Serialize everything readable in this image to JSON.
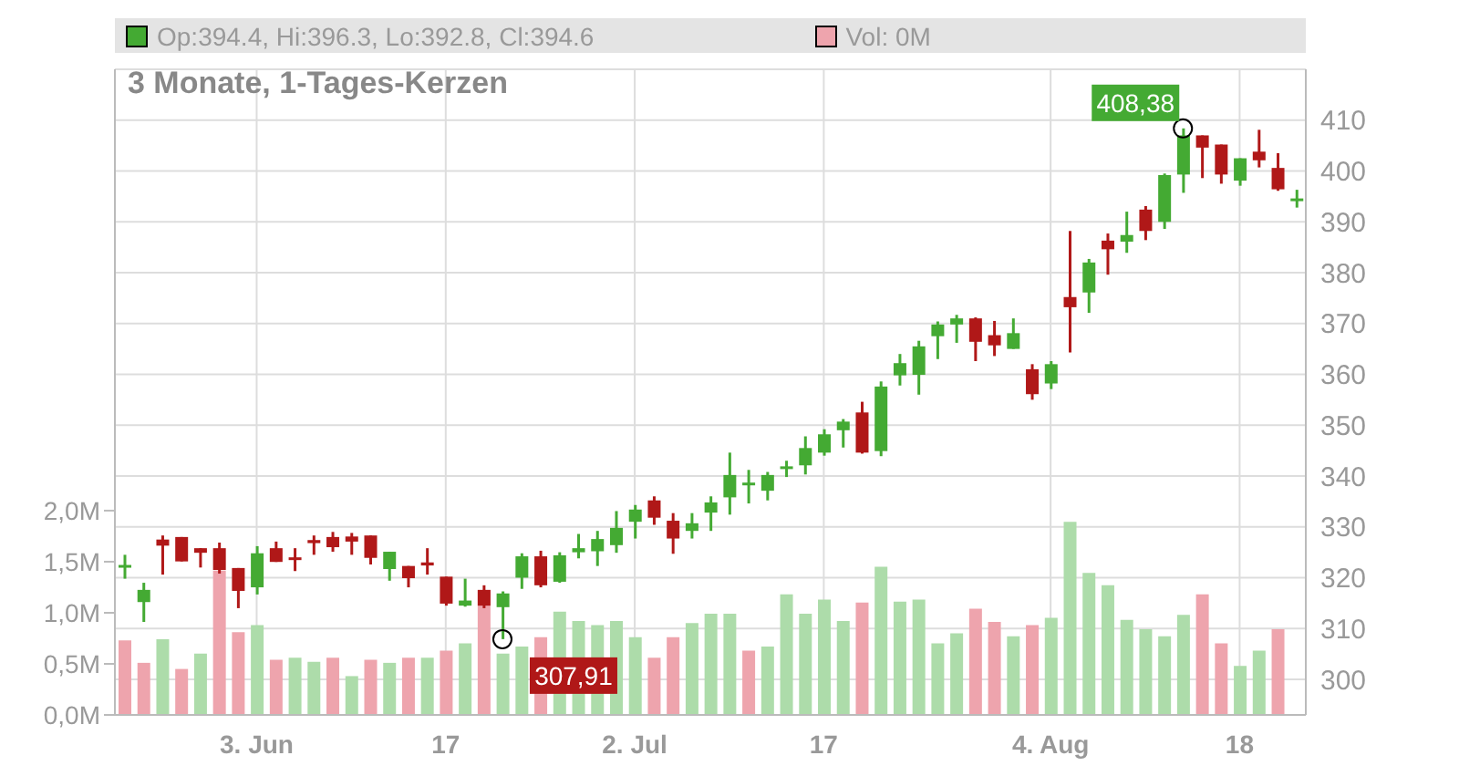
{
  "chart_data": {
    "type": "candlestick",
    "title": "3 Monate, 1-Tages-Kerzen",
    "categories": [
      null,
      null,
      null,
      null,
      null,
      null,
      null,
      "3. Jun",
      null,
      null,
      null,
      null,
      null,
      null,
      null,
      null,
      null,
      "17",
      null,
      null,
      null,
      null,
      null,
      null,
      null,
      null,
      null,
      "2. Jul",
      null,
      null,
      null,
      null,
      null,
      null,
      null,
      null,
      null,
      "17",
      null,
      null,
      null,
      null,
      null,
      null,
      null,
      null,
      null,
      null,
      null,
      "4. Aug",
      null,
      null,
      null,
      null,
      null,
      null,
      null,
      null,
      null,
      "18",
      null,
      null,
      null
    ],
    "series": [
      {
        "name": "Op:394.4, Hi:396.3, Lo:392.8, Cl:394.6",
        "color": "#44aa33",
        "colors": [
          "#44aa33",
          "#44aa33",
          "#b01818",
          "#b01818",
          "#b01818",
          "#b01818",
          "#b01818",
          "#44aa33",
          "#b01818",
          "#b01818",
          "#b01818",
          "#b01818",
          "#b01818",
          "#b01818",
          "#44aa33",
          "#b01818",
          "#b01818",
          "#b01818",
          "#44aa33",
          "#b01818",
          "#44aa33",
          "#44aa33",
          "#b01818",
          "#44aa33",
          "#44aa33",
          "#44aa33",
          "#44aa33",
          "#44aa33",
          "#b01818",
          "#b01818",
          "#44aa33",
          "#44aa33",
          "#44aa33",
          "#44aa33",
          "#44aa33",
          "#44aa33",
          "#44aa33",
          "#44aa33",
          "#44aa33",
          "#b01818",
          "#44aa33",
          "#44aa33",
          "#44aa33",
          "#44aa33",
          "#44aa33",
          "#b01818",
          "#b01818",
          "#44aa33",
          "#b01818",
          "#44aa33",
          "#b01818",
          "#44aa33",
          "#b01818",
          "#44aa33",
          "#b01818",
          "#44aa33",
          "#44aa33",
          "#b01818",
          "#b01818",
          "#44aa33",
          "#b01818",
          "#b01818",
          "#44aa33"
        ],
        "ohlc": [
          [
            322.0,
            324.5,
            319.8,
            322.5
          ],
          [
            315.2,
            319.0,
            311.3,
            317.6
          ],
          [
            327.5,
            328.3,
            320.6,
            326.3
          ],
          [
            328.0,
            328.0,
            323.2,
            323.2
          ],
          [
            325.8,
            325.8,
            322.0,
            324.9
          ],
          [
            325.8,
            326.9,
            320.8,
            321.5
          ],
          [
            321.9,
            321.9,
            314.0,
            317.4
          ],
          [
            318.1,
            326.2,
            316.7,
            324.8
          ],
          [
            325.8,
            327.1,
            323.1,
            323.1
          ],
          [
            324.0,
            325.8,
            321.3,
            323.6
          ],
          [
            327.4,
            328.3,
            324.5,
            326.8
          ],
          [
            328.0,
            329.0,
            325.1,
            326.0
          ],
          [
            328.1,
            328.8,
            324.5,
            327.1
          ],
          [
            328.3,
            328.3,
            322.6,
            323.9
          ],
          [
            321.7,
            325.1,
            319.4,
            325.1
          ],
          [
            322.3,
            322.3,
            318.1,
            319.9
          ],
          [
            323.0,
            325.8,
            320.6,
            322.4
          ],
          [
            320.2,
            320.2,
            314.5,
            314.9
          ],
          [
            314.5,
            319.8,
            314.3,
            315.5
          ],
          [
            317.6,
            318.5,
            314.0,
            314.5
          ],
          [
            314.2,
            317.3,
            307.91,
            316.9
          ],
          [
            320.0,
            324.8,
            317.8,
            324.2
          ],
          [
            324.2,
            325.3,
            318.1,
            318.5
          ],
          [
            319.2,
            325.0,
            319.0,
            324.4
          ],
          [
            325.0,
            328.6,
            323.8,
            325.8
          ],
          [
            325.2,
            329.2,
            322.3,
            327.6
          ],
          [
            326.4,
            333.1,
            324.9,
            329.8
          ],
          [
            331.0,
            334.3,
            327.7,
            333.4
          ],
          [
            335.2,
            336.0,
            330.4,
            331.8
          ],
          [
            331.2,
            332.7,
            324.7,
            327.7
          ],
          [
            329.2,
            332.7,
            327.7,
            330.7
          ],
          [
            332.8,
            336.0,
            329.2,
            334.8
          ],
          [
            335.8,
            344.6,
            332.4,
            340.2
          ],
          [
            338.3,
            341.2,
            334.6,
            338.7
          ],
          [
            337.1,
            340.8,
            335.2,
            340.2
          ],
          [
            341.7,
            343.0,
            339.8,
            341.9
          ],
          [
            342.1,
            347.8,
            340.3,
            345.5
          ],
          [
            344.6,
            349.2,
            344.0,
            348.2
          ],
          [
            349.0,
            351.2,
            345.6,
            350.7
          ],
          [
            352.5,
            354.6,
            344.4,
            344.6
          ],
          [
            344.9,
            358.6,
            343.9,
            357.6
          ],
          [
            359.8,
            364.0,
            357.8,
            362.2
          ],
          [
            359.9,
            366.6,
            356.0,
            365.5
          ],
          [
            367.5,
            370.4,
            363.0,
            369.8
          ],
          [
            369.8,
            371.7,
            366.2,
            371.0
          ],
          [
            371.0,
            371.2,
            362.6,
            366.4
          ],
          [
            367.7,
            370.5,
            363.6,
            365.7
          ],
          [
            365.0,
            371.0,
            365.0,
            368.1
          ],
          [
            361.0,
            362.0,
            355.0,
            356.1
          ],
          [
            358.2,
            362.6,
            357.1,
            362.0
          ],
          [
            375.2,
            388.2,
            364.3,
            373.2
          ],
          [
            376.1,
            382.7,
            372.1,
            382.0
          ],
          [
            386.3,
            387.7,
            379.6,
            384.6
          ],
          [
            386.1,
            392.0,
            383.9,
            387.4
          ],
          [
            392.4,
            393.1,
            386.4,
            388.2
          ],
          [
            390.0,
            399.5,
            388.6,
            399.2
          ],
          [
            399.3,
            408.38,
            395.7,
            407.0
          ],
          [
            407.0,
            407.0,
            398.6,
            404.6
          ],
          [
            405.2,
            405.2,
            397.5,
            399.3
          ],
          [
            398.1,
            402.5,
            397.1,
            402.5
          ],
          [
            403.8,
            408.1,
            400.7,
            402.1
          ],
          [
            400.6,
            403.5,
            396.1,
            396.4
          ],
          [
            394.4,
            396.3,
            392.8,
            394.6
          ]
        ]
      },
      {
        "type": "bar",
        "name": "Vol: 0M",
        "axis": "y2",
        "color": "#eea4ad",
        "colors": [
          "#eea4ad",
          "#eea4ad",
          "#addcaa",
          "#eea4ad",
          "#addcaa",
          "#eea4ad",
          "#eea4ad",
          "#addcaa",
          "#eea4ad",
          "#addcaa",
          "#addcaa",
          "#eea4ad",
          "#addcaa",
          "#eea4ad",
          "#addcaa",
          "#eea4ad",
          "#addcaa",
          "#eea4ad",
          "#addcaa",
          "#eea4ad",
          "#addcaa",
          "#addcaa",
          "#eea4ad",
          "#addcaa",
          "#addcaa",
          "#addcaa",
          "#addcaa",
          "#addcaa",
          "#eea4ad",
          "#eea4ad",
          "#addcaa",
          "#addcaa",
          "#addcaa",
          "#eea4ad",
          "#addcaa",
          "#addcaa",
          "#addcaa",
          "#addcaa",
          "#addcaa",
          "#eea4ad",
          "#addcaa",
          "#addcaa",
          "#addcaa",
          "#addcaa",
          "#addcaa",
          "#eea4ad",
          "#eea4ad",
          "#addcaa",
          "#eea4ad",
          "#addcaa",
          "#addcaa",
          "#addcaa",
          "#addcaa",
          "#addcaa",
          "#addcaa",
          "#addcaa",
          "#addcaa",
          "#eea4ad",
          "#eea4ad",
          "#addcaa",
          "#addcaa",
          "#eea4ad",
          "#addcaa"
        ],
        "values": [
          0.73,
          0.51,
          0.74,
          0.45,
          0.6,
          1.41,
          0.81,
          0.88,
          0.54,
          0.56,
          0.52,
          0.56,
          0.38,
          0.54,
          0.51,
          0.56,
          0.56,
          0.63,
          0.7,
          1.22,
          0.6,
          0.67,
          0.76,
          1.01,
          0.92,
          0.88,
          0.92,
          0.76,
          0.56,
          0.76,
          0.9,
          0.99,
          0.99,
          0.63,
          0.67,
          1.18,
          0.99,
          1.13,
          0.92,
          1.1,
          1.45,
          1.11,
          1.13,
          0.7,
          0.8,
          1.04,
          0.91,
          0.77,
          0.88,
          0.95,
          1.89,
          1.39,
          1.27,
          0.93,
          0.84,
          0.77,
          0.98,
          1.18,
          0.7,
          0.48,
          0.63,
          0.84,
          0
        ]
      }
    ],
    "ylim": [
      293,
      420
    ],
    "yticks": [
      300,
      310,
      320,
      330,
      340,
      350,
      360,
      370,
      380,
      390,
      400,
      410
    ],
    "y2lim": [
      0,
      6.32
    ],
    "y2ticks": [
      {
        "value": 0,
        "label": "0,0M"
      },
      {
        "value": 0.5,
        "label": "0,5M"
      },
      {
        "value": 1,
        "label": "1,0M"
      },
      {
        "value": 1.5,
        "label": "1,5M"
      },
      {
        "value": 2,
        "label": "2,0M"
      }
    ],
    "annotations": [
      "408,38",
      "307,91"
    ],
    "grid": true,
    "legend": "top"
  }
}
